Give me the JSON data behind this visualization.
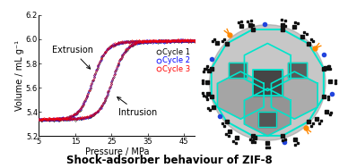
{
  "title": "Shock-adsorber behaviour of ZIF-8",
  "title_fontsize": 8.5,
  "xlabel": "Pressure / MPa",
  "ylabel": "Volume / mL g⁻¹",
  "xlim": [
    5,
    48
  ],
  "ylim": [
    5.2,
    6.2
  ],
  "xticks": [
    5,
    15,
    25,
    35,
    45
  ],
  "yticks": [
    5.2,
    5.4,
    5.6,
    5.8,
    6.0,
    6.2
  ],
  "cycle_colors": [
    "#000000",
    "#0000ff",
    "#ff0000"
  ],
  "cycle_labels": [
    "Cycle 1",
    "Cycle 2",
    "Cycle 3"
  ],
  "vol_low": 5.335,
  "vol_high": 5.97,
  "intr_x0": 25.2,
  "intr_k": 0.55,
  "extr_x0": 19.8,
  "extr_k": 0.55,
  "label_extrusion": "Extrusion",
  "label_intrusion": "Intrusion",
  "annotation_fontsize": 7,
  "legend_fontsize": 6,
  "axis_label_fontsize": 7,
  "tick_fontsize": 6
}
